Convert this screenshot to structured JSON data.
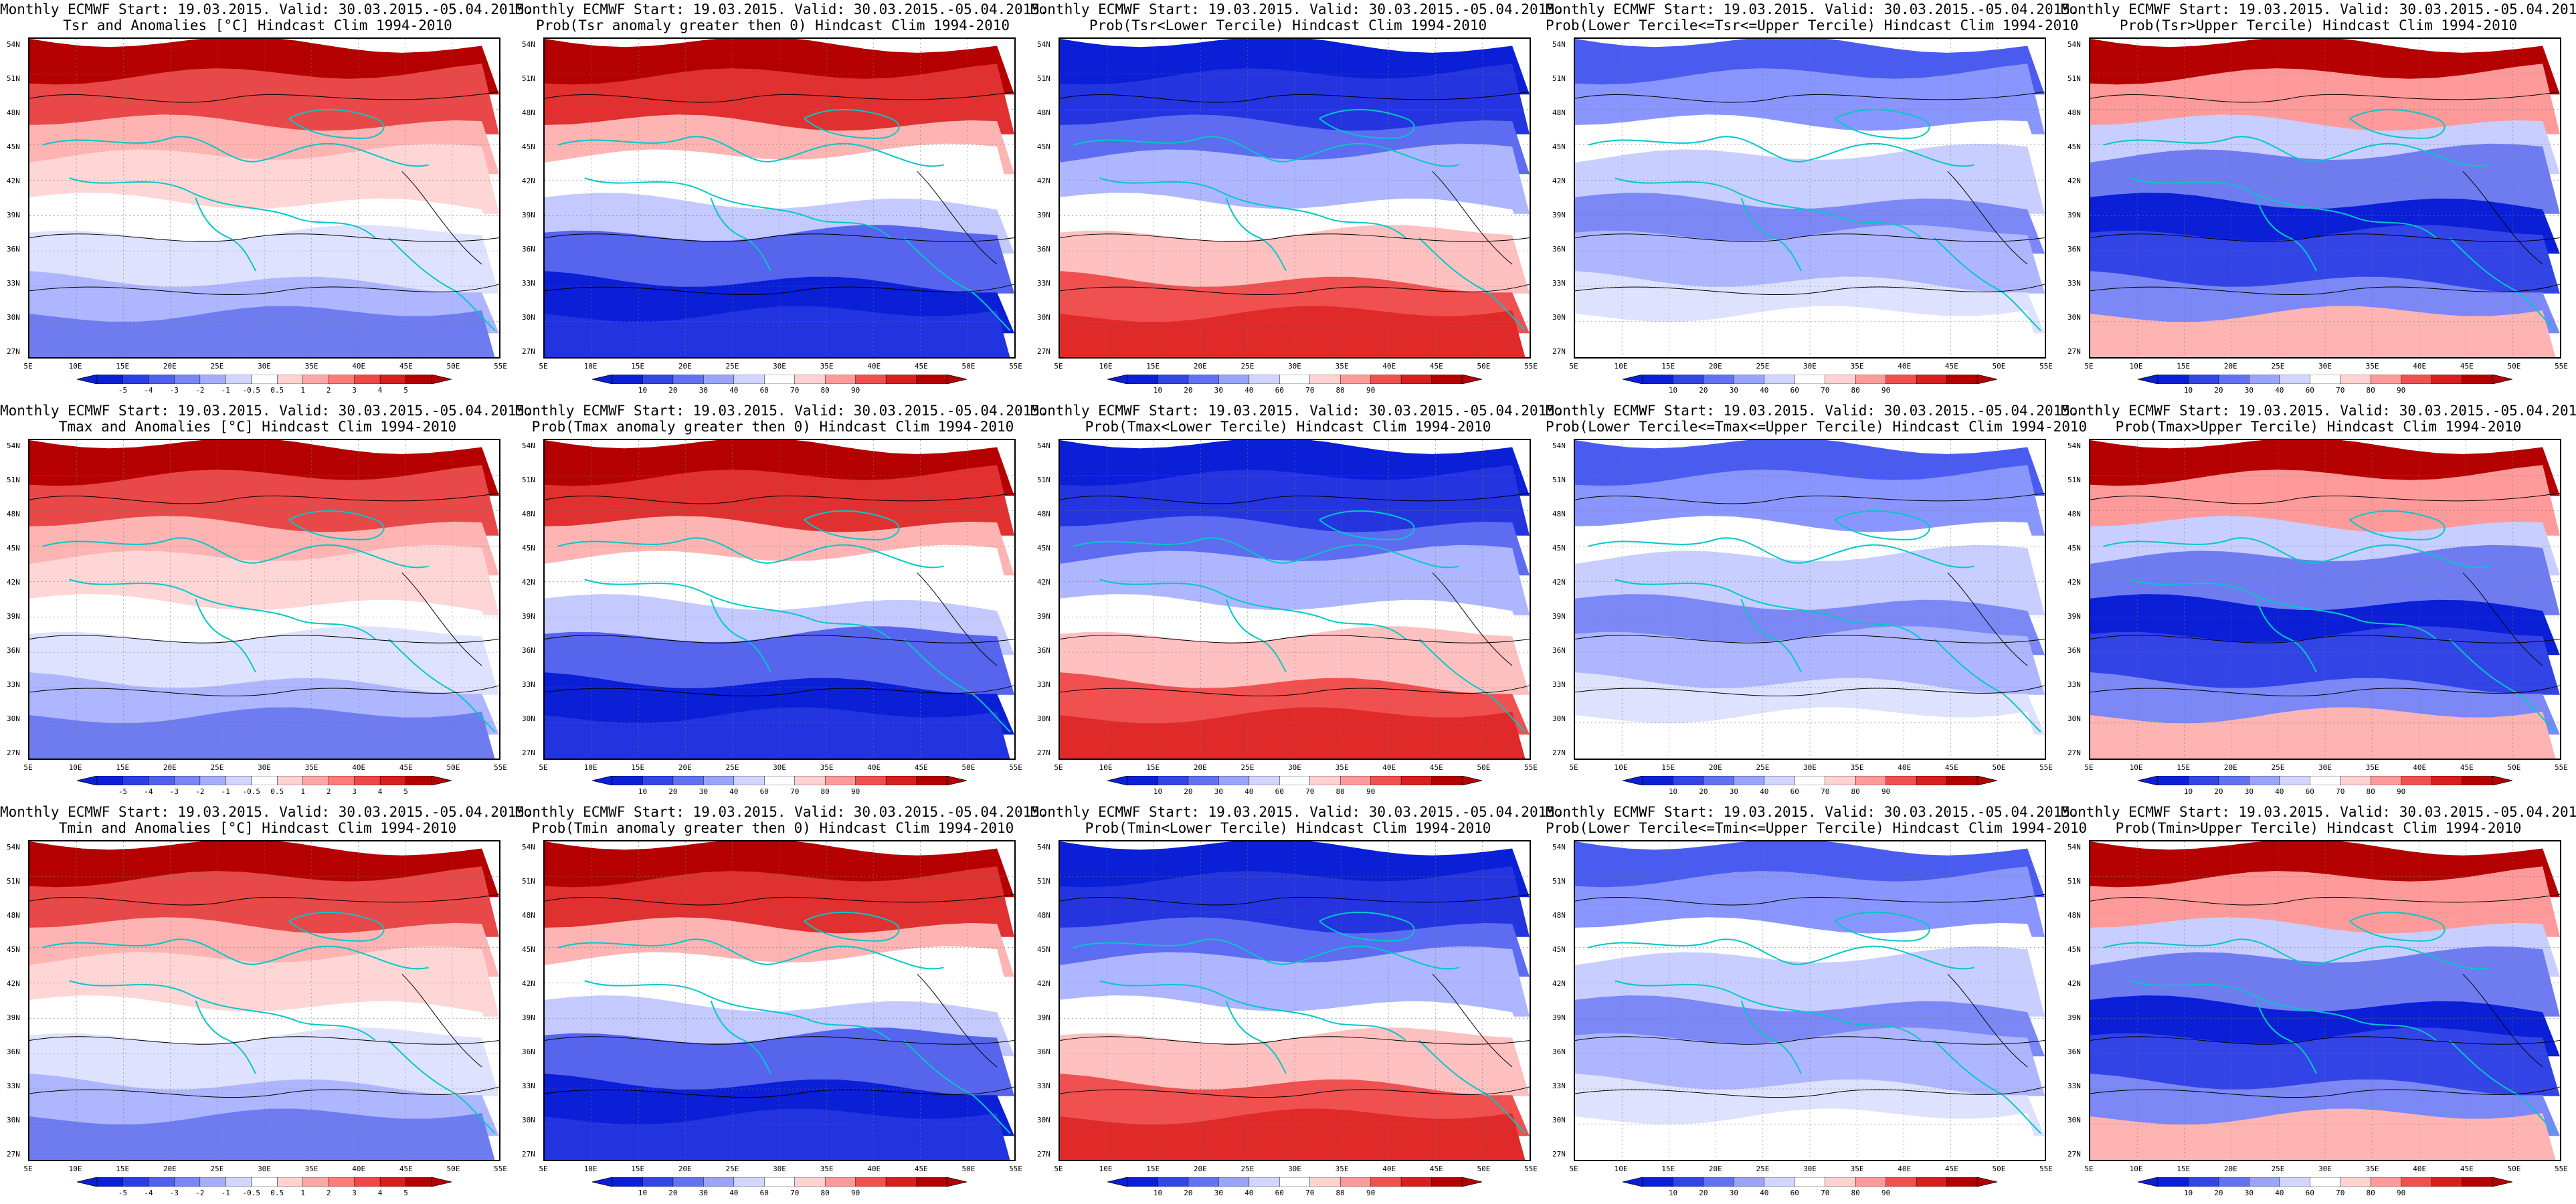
{
  "title_line1": "Monthly ECMWF Start: 19.03.2015. Valid: 30.03.2015.-05.04.2015.",
  "lat_labels": [
    "54N",
    "51N",
    "48N",
    "45N",
    "42N",
    "39N",
    "36N",
    "33N",
    "30N",
    "27N"
  ],
  "lon_labels": [
    "5E",
    "10E",
    "15E",
    "20E",
    "25E",
    "30E",
    "35E",
    "40E",
    "45E",
    "50E",
    "55E"
  ],
  "colorbars": {
    "anomaly": {
      "ticks": [
        "-5",
        "-4",
        "-3",
        "-2",
        "-1",
        "-0.5",
        "0.5",
        "1",
        "2",
        "3",
        "4",
        "5"
      ]
    },
    "probability": {
      "ticks": [
        "10",
        "20",
        "30",
        "40",
        "60",
        "70",
        "80",
        "90"
      ]
    }
  },
  "colors": {
    "deep_blue": "#0a1fd6",
    "light_blue": "#aeb6ff",
    "white": "#ffffff",
    "light_red": "#ffb4b4",
    "deep_red": "#b50000",
    "coast": "#00c8c8"
  },
  "panels": [
    {
      "title2": "Tsr and Anomalies [°C] Hindcast Clim 1994-2010",
      "bar": "anomaly",
      "pattern": "anomaly_t"
    },
    {
      "title2": "Prob(Tsr anomaly greater then 0) Hindcast Clim 1994-2010",
      "bar": "probability",
      "pattern": "prob_pos"
    },
    {
      "title2": "Prob(Tsr<Lower Tercile) Hindcast Clim 1994-2010",
      "bar": "probability",
      "pattern": "prob_lower"
    },
    {
      "title2": "Prob(Lower Tercile<=Tsr<=Upper Tercile) Hindcast Clim 1994-2010",
      "bar": "probability",
      "pattern": "prob_mid"
    },
    {
      "title2": "Prob(Tsr>Upper Tercile) Hindcast Clim 1994-2010",
      "bar": "probability",
      "pattern": "prob_upper"
    },
    {
      "title2": "Tmax and Anomalies [°C] Hindcast Clim 1994-2010",
      "bar": "anomaly",
      "pattern": "anomaly_t"
    },
    {
      "title2": "Prob(Tmax anomaly greater then 0) Hindcast Clim 1994-2010",
      "bar": "probability",
      "pattern": "prob_pos"
    },
    {
      "title2": "Prob(Tmax<Lower Tercile) Hindcast Clim 1994-2010",
      "bar": "probability",
      "pattern": "prob_lower"
    },
    {
      "title2": "Prob(Lower Tercile<=Tmax<=Upper Tercile) Hindcast Clim 1994-2010",
      "bar": "probability",
      "pattern": "prob_mid"
    },
    {
      "title2": "Prob(Tmax>Upper Tercile) Hindcast Clim 1994-2010",
      "bar": "probability",
      "pattern": "prob_upper"
    },
    {
      "title2": "Tmin and Anomalies [°C] Hindcast Clim 1994-2010",
      "bar": "anomaly",
      "pattern": "anomaly_t"
    },
    {
      "title2": "Prob(Tmin anomaly greater then 0) Hindcast Clim 1994-2010",
      "bar": "probability",
      "pattern": "prob_pos"
    },
    {
      "title2": "Prob(Tmin<Lower Tercile) Hindcast Clim 1994-2010",
      "bar": "probability",
      "pattern": "prob_lower"
    },
    {
      "title2": "Prob(Lower Tercile<=Tmin<=Upper Tercile) Hindcast Clim 1994-2010",
      "bar": "probability",
      "pattern": "prob_mid"
    },
    {
      "title2": "Prob(Tmin>Upper Tercile) Hindcast Clim 1994-2010",
      "bar": "probability",
      "pattern": "prob_upper"
    }
  ]
}
